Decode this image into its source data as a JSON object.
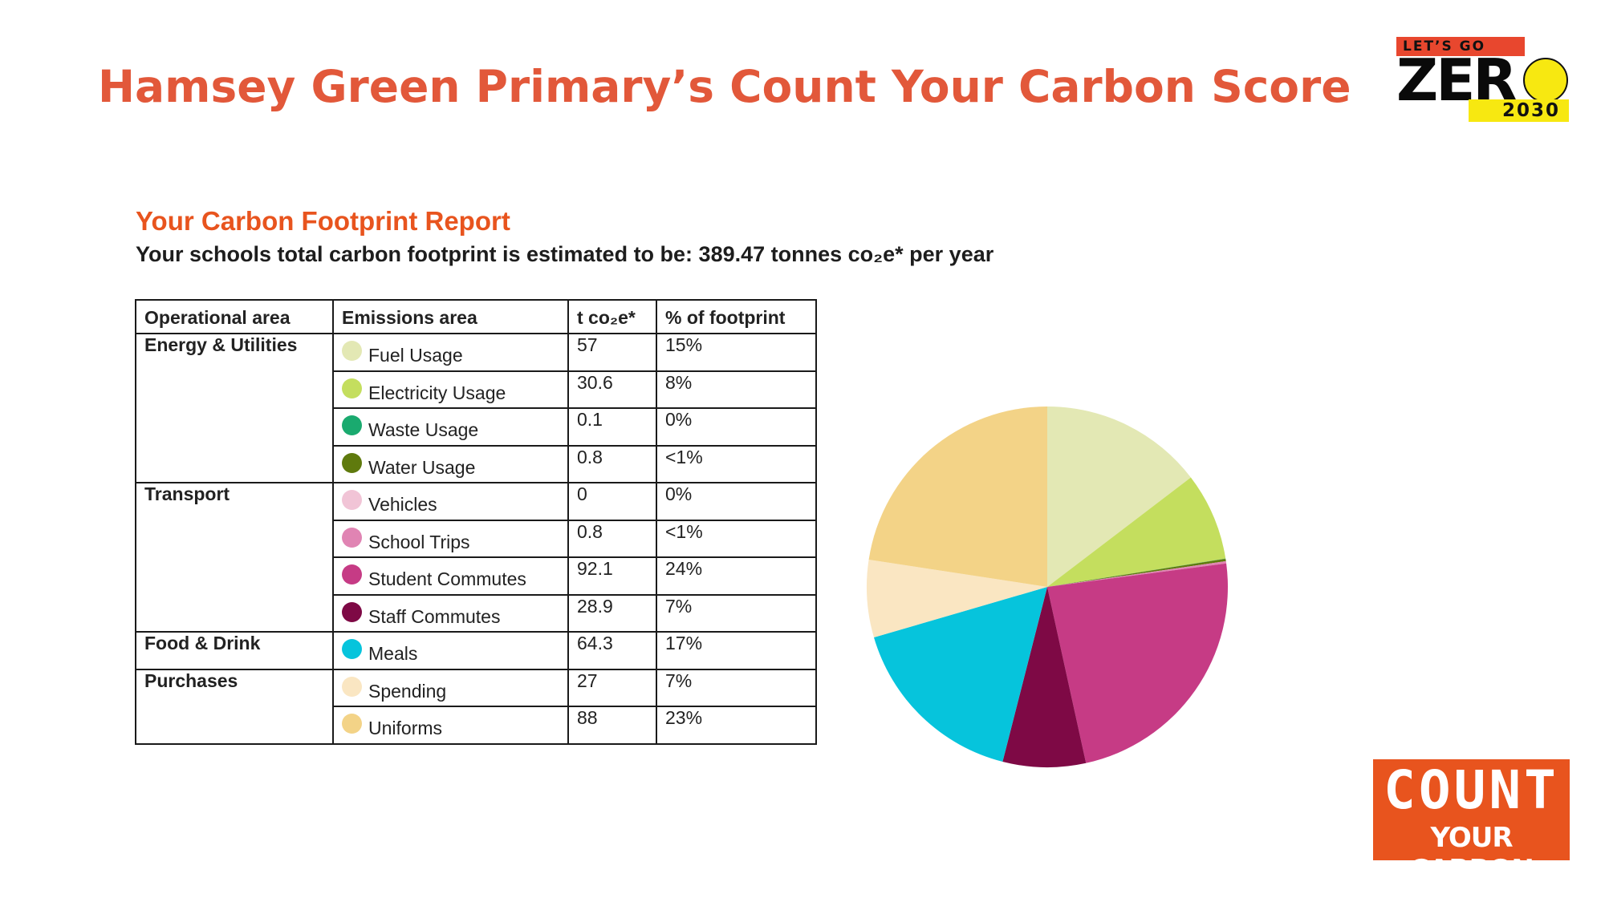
{
  "slide": {
    "title": "Hamsey Green Primary’s Count Your Carbon Score"
  },
  "report": {
    "title": "Your Carbon Footprint Report",
    "summary": "Your schools total carbon footprint is estimated to be: 389.47 tonnes co₂e* per year"
  },
  "table": {
    "headers": [
      "Operational area",
      "Emissions area",
      "t co₂e*",
      "% of footprint"
    ],
    "groups": [
      {
        "area": "Energy & Utilities",
        "rows": [
          {
            "label": "Fuel Usage",
            "t": "57",
            "pct": "15%",
            "color": "#e3e8b4"
          },
          {
            "label": "Electricity Usage",
            "t": "30.6",
            "pct": "8%",
            "color": "#c4de5e"
          },
          {
            "label": "Waste Usage",
            "t": "0.1",
            "pct": "0%",
            "color": "#1aaa6f"
          },
          {
            "label": "Water Usage",
            "t": "0.8",
            "pct": "<1%",
            "color": "#5f7a0d"
          }
        ]
      },
      {
        "area": "Transport",
        "rows": [
          {
            "label": "Vehicles",
            "t": "0",
            "pct": "0%",
            "color": "#f1c4d6"
          },
          {
            "label": "School Trips",
            "t": "0.8",
            "pct": "<1%",
            "color": "#e084b3"
          },
          {
            "label": "Student Commutes",
            "t": "92.1",
            "pct": "24%",
            "color": "#c63b85"
          },
          {
            "label": "Staff Commutes",
            "t": "28.9",
            "pct": "7%",
            "color": "#7e0945"
          }
        ]
      },
      {
        "area": "Food & Drink",
        "rows": [
          {
            "label": "Meals",
            "t": "64.3",
            "pct": "17%",
            "color": "#06c4dc"
          }
        ]
      },
      {
        "area": "Purchases",
        "rows": [
          {
            "label": "Spending",
            "t": "27",
            "pct": "7%",
            "color": "#fae6c2"
          },
          {
            "label": "Uniforms",
            "t": "88",
            "pct": "23%",
            "color": "#f3d387"
          }
        ]
      }
    ]
  },
  "chart_data": {
    "type": "pie",
    "categories": [
      "Fuel Usage",
      "Electricity Usage",
      "Waste Usage",
      "Water Usage",
      "Vehicles",
      "School Trips",
      "Student Commutes",
      "Staff Commutes",
      "Meals",
      "Spending",
      "Uniforms"
    ],
    "values": [
      57,
      30.6,
      0.1,
      0.8,
      0,
      0.8,
      92.1,
      28.9,
      64.3,
      27,
      88
    ],
    "colors": [
      "#e3e8b4",
      "#c4de5e",
      "#1aaa6f",
      "#5f7a0d",
      "#f1c4d6",
      "#e084b3",
      "#c63b85",
      "#7e0945",
      "#06c4dc",
      "#fae6c2",
      "#f3d387"
    ],
    "title": "",
    "start_angle": "12 o'clock",
    "direction": "clockwise"
  },
  "logos": {
    "zero": {
      "top": "LET’S GO",
      "word": "ZER",
      "year": "2030"
    },
    "count": {
      "word": "COUNT",
      "sub": "YOUR CARBON"
    }
  }
}
